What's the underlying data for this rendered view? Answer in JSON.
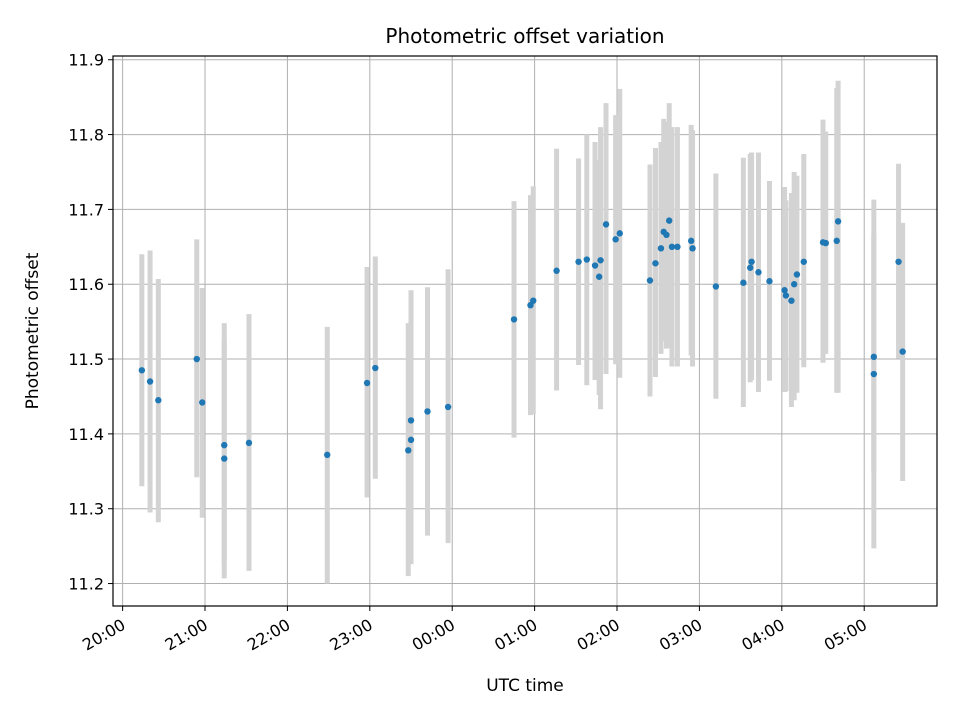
{
  "chart_data": {
    "type": "scatter",
    "title": "Photometric offset variation",
    "xlabel": "UTC time",
    "ylabel": "Photometric offset",
    "grid": true,
    "x_unit": "UTC time (HH:MM)",
    "xlim": [
      "19:53",
      "05:53"
    ],
    "ylim": [
      11.17,
      11.905
    ],
    "x_ticks": [
      "20:00",
      "21:00",
      "22:00",
      "23:00",
      "00:00",
      "01:00",
      "02:00",
      "03:00",
      "04:00",
      "05:00"
    ],
    "y_ticks": [
      "11.2",
      "11.3",
      "11.4",
      "11.5",
      "11.6",
      "11.7",
      "11.8",
      "11.9"
    ],
    "point_color": "#1f77b4",
    "errorbar_color": "#d3d3d3",
    "series": [
      {
        "x": [
          "20:14",
          "20:20",
          "20:26",
          "20:54",
          "20:58",
          "21:14",
          "21:14",
          "21:32",
          "22:29",
          "22:58",
          "23:04",
          "23:28",
          "23:30",
          "23:30",
          "23:42",
          "23:57",
          "00:45",
          "00:57",
          "00:59",
          "01:16",
          "01:32",
          "01:38",
          "01:44",
          "01:47",
          "01:48",
          "01:52",
          "01:59",
          "02:02",
          "02:24",
          "02:28",
          "02:32",
          "02:34",
          "02:36",
          "02:38",
          "02:40",
          "02:44",
          "02:54",
          "02:55",
          "03:12",
          "03:32",
          "03:37",
          "03:38",
          "03:43",
          "03:51",
          "04:02",
          "04:03",
          "04:07",
          "04:09",
          "04:11",
          "04:16",
          "04:30",
          "04:32",
          "04:40",
          "04:41",
          "05:07",
          "05:07",
          "05:25",
          "05:28"
        ],
        "y": [
          11.485,
          11.47,
          11.445,
          11.5,
          11.442,
          11.385,
          11.367,
          11.388,
          11.372,
          11.468,
          11.488,
          11.378,
          11.418,
          11.392,
          11.43,
          11.436,
          11.553,
          11.572,
          11.578,
          11.618,
          11.63,
          11.633,
          11.625,
          11.61,
          11.632,
          11.68,
          11.66,
          11.668,
          11.605,
          11.628,
          11.648,
          11.67,
          11.666,
          11.685,
          11.65,
          11.65,
          11.658,
          11.648,
          11.597,
          11.602,
          11.622,
          11.63,
          11.616,
          11.604,
          11.592,
          11.585,
          11.578,
          11.6,
          11.613,
          11.63,
          11.656,
          11.655,
          11.658,
          11.684,
          11.503,
          11.48,
          11.63,
          11.51
        ],
        "y_low": [
          11.33,
          11.295,
          11.282,
          11.342,
          11.288,
          11.228,
          11.207,
          11.217,
          11.2,
          11.315,
          11.34,
          11.21,
          11.242,
          11.226,
          11.264,
          11.254,
          11.395,
          11.425,
          11.426,
          11.458,
          11.492,
          11.465,
          11.472,
          11.452,
          11.433,
          11.48,
          11.493,
          11.475,
          11.45,
          11.476,
          11.507,
          11.524,
          11.514,
          11.515,
          11.49,
          11.49,
          11.505,
          11.49,
          11.447,
          11.436,
          11.469,
          11.472,
          11.456,
          11.471,
          11.456,
          11.457,
          11.436,
          11.445,
          11.455,
          11.489,
          11.495,
          11.507,
          11.455,
          11.455,
          11.247,
          11.35,
          11.501,
          11.337
        ],
        "y_high": [
          11.64,
          11.645,
          11.607,
          11.66,
          11.595,
          11.548,
          11.527,
          11.56,
          11.543,
          11.623,
          11.637,
          11.548,
          11.592,
          11.556,
          11.596,
          11.62,
          11.711,
          11.719,
          11.731,
          11.781,
          11.768,
          11.8,
          11.79,
          11.766,
          11.81,
          11.842,
          11.826,
          11.861,
          11.76,
          11.782,
          11.79,
          11.821,
          11.817,
          11.842,
          11.81,
          11.81,
          11.813,
          11.806,
          11.748,
          11.769,
          11.774,
          11.776,
          11.776,
          11.738,
          11.73,
          11.712,
          11.722,
          11.75,
          11.745,
          11.774,
          11.82,
          11.804,
          11.862,
          11.872,
          11.713,
          11.666,
          11.761,
          11.682
        ]
      }
    ]
  }
}
